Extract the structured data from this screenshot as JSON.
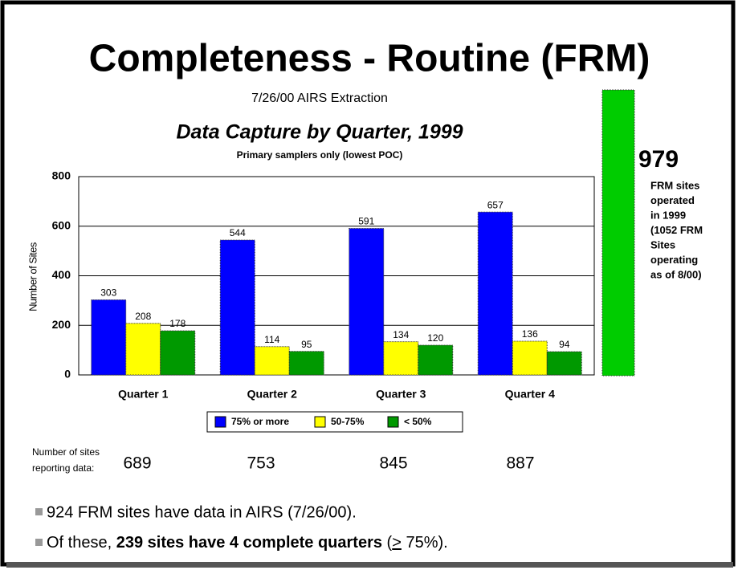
{
  "header": {
    "title": "Completeness - Routine (FRM)",
    "subtitle": "7/26/00 AIRS Extraction"
  },
  "chart_data": {
    "type": "bar",
    "title": "Data Capture by Quarter, 1999",
    "subtitle": "Primary samplers only (lowest POC)",
    "y_label": "Number of Sites",
    "categories": [
      "Quarter 1",
      "Quarter 2",
      "Quarter 3",
      "Quarter 4"
    ],
    "series": [
      {
        "name": "75% or more",
        "color": "#0000ff",
        "values": [
          303,
          544,
          591,
          657
        ]
      },
      {
        "name": "50-75%",
        "color": "#ffff00",
        "values": [
          208,
          114,
          134,
          136
        ]
      },
      {
        "name": "< 50%",
        "color": "#009900",
        "values": [
          178,
          95,
          120,
          94
        ]
      }
    ],
    "ylim": [
      0,
      800
    ],
    "yticks": [
      0,
      200,
      400,
      600,
      800
    ],
    "grid": true,
    "legend": "bottom"
  },
  "side_note": {
    "number": "979",
    "lines": [
      "FRM sites",
      "operated",
      "in 1999",
      "(1052 FRM",
      "Sites",
      "operating",
      "as of 8/00)"
    ]
  },
  "reporting": {
    "label": [
      "Number of sites",
      "reporting data:"
    ],
    "values": [
      "689",
      "753",
      "845",
      "887"
    ]
  },
  "bullets": {
    "first": "924 FRM sites have data in AIRS (7/26/00).",
    "second": {
      "lead": "Of these, ",
      "bold": "239 sites have 4 complete quarters",
      "open": " (",
      "symbol": ">",
      "tail": " 75%)."
    }
  }
}
